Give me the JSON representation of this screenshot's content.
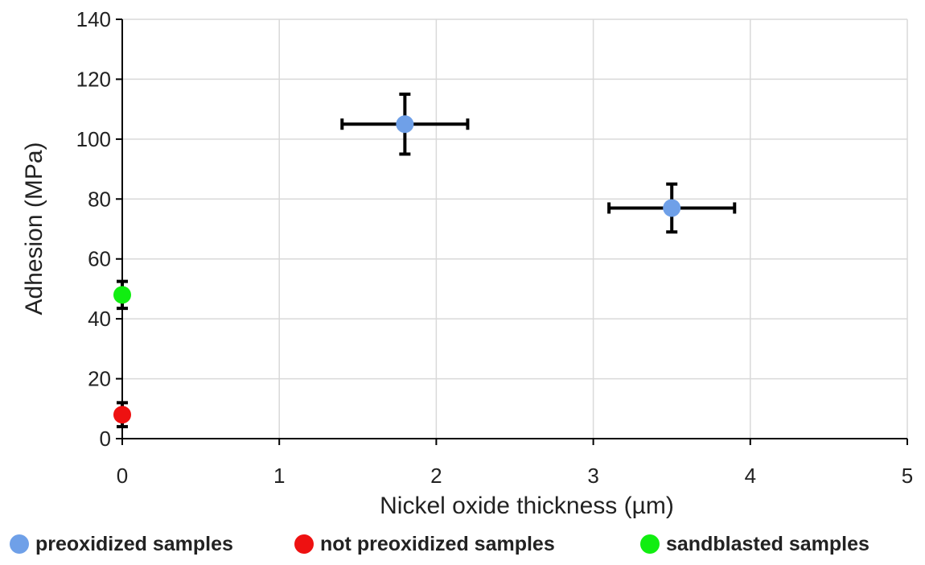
{
  "chart_data": {
    "type": "scatter",
    "title": "",
    "xlabel": "Nickel oxide  thickness (µm)",
    "ylabel": "Adhesion (MPa)",
    "xlim": [
      0,
      5
    ],
    "ylim": [
      0,
      140
    ],
    "x_ticks": [
      "0",
      "1",
      "2",
      "3",
      "4",
      "5"
    ],
    "y_ticks": [
      "0",
      "20",
      "40",
      "60",
      "80",
      "100",
      "120",
      "140"
    ],
    "grid": true,
    "legend_position": "bottom",
    "series": [
      {
        "name": "preoxidized samples",
        "color": "#6fa0e8",
        "points": [
          {
            "x": 1.8,
            "y": 105,
            "x_err": 0.4,
            "y_err": 10
          },
          {
            "x": 3.5,
            "y": 77,
            "x_err": 0.4,
            "y_err": 8
          }
        ]
      },
      {
        "name": "not preoxidized samples",
        "color": "#ee1111",
        "points": [
          {
            "x": 0,
            "y": 8,
            "x_err": 0,
            "y_err": 4
          }
        ]
      },
      {
        "name": "sandblasted samples",
        "color": "#11ee11",
        "points": [
          {
            "x": 0,
            "y": 48,
            "x_err": 0,
            "y_err": 4.5
          }
        ]
      }
    ]
  }
}
